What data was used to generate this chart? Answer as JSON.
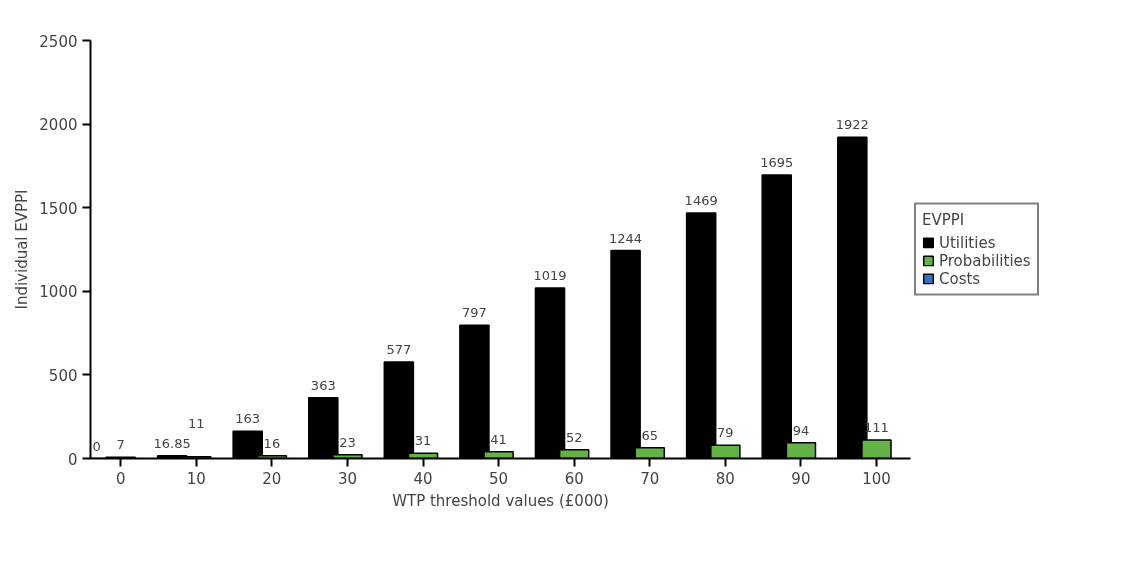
{
  "chart_data": {
    "type": "bar",
    "xlabel": "WTP threshold values (£000)",
    "ylabel": "Individual EVPPI",
    "legend_title": "EVPPI",
    "x": [
      0,
      10,
      20,
      30,
      40,
      50,
      60,
      70,
      80,
      90,
      100
    ],
    "series": [
      {
        "name": "Utilities",
        "color": "#000000",
        "values": [
          0,
          16.85,
          163,
          363,
          577,
          797,
          1019,
          1244,
          1469,
          1695,
          1922
        ]
      },
      {
        "name": "Probabilities",
        "color": "#62b246",
        "values": [
          7,
          11,
          16,
          23,
          31,
          41,
          52,
          65,
          79,
          94,
          111
        ]
      },
      {
        "name": "Costs",
        "color": "#3a6ec4",
        "values": [
          null,
          null,
          null,
          null,
          null,
          null,
          null,
          null,
          null,
          null,
          null
        ]
      }
    ],
    "xlim": [
      -4,
      104.5
    ],
    "xticks": [
      0,
      10,
      20,
      30,
      40,
      50,
      60,
      70,
      80,
      90,
      100
    ],
    "ylim": [
      0,
      2500
    ],
    "yticks": [
      0,
      500,
      1000,
      1500,
      2000,
      2500
    ],
    "data_labels": true,
    "legend": "right",
    "grid": false
  }
}
